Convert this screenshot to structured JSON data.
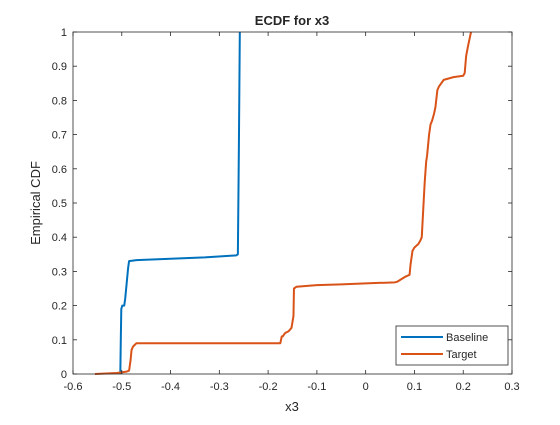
{
  "chart_data": {
    "type": "line",
    "title": "ECDF for x3",
    "xlabel": "x3",
    "ylabel": "Empirical CDF",
    "xlim": [
      -0.6,
      0.3
    ],
    "ylim": [
      0,
      1
    ],
    "xticks": [
      -0.6,
      -0.5,
      -0.4,
      -0.3,
      -0.2,
      -0.1,
      0,
      0.1,
      0.2,
      0.3
    ],
    "xtick_labels": [
      "-0.6",
      "-0.5",
      "-0.4",
      "-0.3",
      "-0.2",
      "-0.1",
      "0",
      "0.1",
      "0.2",
      "0.3"
    ],
    "yticks": [
      0,
      0.1,
      0.2,
      0.3,
      0.4,
      0.5,
      0.6,
      0.7,
      0.8,
      0.9,
      1
    ],
    "ytick_labels": [
      "0",
      "0.1",
      "0.2",
      "0.3",
      "0.4",
      "0.5",
      "0.6",
      "0.7",
      "0.8",
      "0.9",
      "1"
    ],
    "grid": false,
    "legend_position": "bottom-right",
    "series": [
      {
        "name": "Baseline",
        "color": "#0072bd",
        "points": [
          [
            -0.503,
            0
          ],
          [
            -0.502,
            0.1
          ],
          [
            -0.501,
            0.19
          ],
          [
            -0.499,
            0.2
          ],
          [
            -0.495,
            0.2
          ],
          [
            -0.493,
            0.22
          ],
          [
            -0.491,
            0.25
          ],
          [
            -0.489,
            0.28
          ],
          [
            -0.487,
            0.31
          ],
          [
            -0.485,
            0.33
          ],
          [
            -0.47,
            0.333
          ],
          [
            -0.4,
            0.337
          ],
          [
            -0.33,
            0.341
          ],
          [
            -0.265,
            0.347
          ],
          [
            -0.262,
            0.35
          ],
          [
            -0.26,
            0.65
          ],
          [
            -0.258,
            1.0
          ]
        ]
      },
      {
        "name": "Target",
        "color": "#d95319",
        "points": [
          [
            -0.555,
            0
          ],
          [
            -0.51,
            0.003
          ],
          [
            -0.49,
            0.007
          ],
          [
            -0.485,
            0.01
          ],
          [
            -0.482,
            0.04
          ],
          [
            -0.48,
            0.07
          ],
          [
            -0.477,
            0.08
          ],
          [
            -0.47,
            0.09
          ],
          [
            -0.4,
            0.09
          ],
          [
            -0.25,
            0.09
          ],
          [
            -0.175,
            0.09
          ],
          [
            -0.172,
            0.11
          ],
          [
            -0.17,
            0.11
          ],
          [
            -0.165,
            0.12
          ],
          [
            -0.158,
            0.125
          ],
          [
            -0.152,
            0.135
          ],
          [
            -0.148,
            0.17
          ],
          [
            -0.147,
            0.25
          ],
          [
            -0.142,
            0.255
          ],
          [
            -0.1,
            0.26
          ],
          [
            -0.05,
            0.262
          ],
          [
            0.0,
            0.265
          ],
          [
            0.04,
            0.267
          ],
          [
            0.06,
            0.268
          ],
          [
            0.065,
            0.27
          ],
          [
            0.082,
            0.285
          ],
          [
            0.09,
            0.29
          ],
          [
            0.092,
            0.32
          ],
          [
            0.096,
            0.36
          ],
          [
            0.1,
            0.37
          ],
          [
            0.108,
            0.38
          ],
          [
            0.112,
            0.39
          ],
          [
            0.115,
            0.4
          ],
          [
            0.118,
            0.48
          ],
          [
            0.121,
            0.56
          ],
          [
            0.124,
            0.62
          ],
          [
            0.126,
            0.64
          ],
          [
            0.13,
            0.7
          ],
          [
            0.133,
            0.73
          ],
          [
            0.136,
            0.74
          ],
          [
            0.14,
            0.76
          ],
          [
            0.143,
            0.78
          ],
          [
            0.147,
            0.83
          ],
          [
            0.15,
            0.84
          ],
          [
            0.16,
            0.86
          ],
          [
            0.18,
            0.868
          ],
          [
            0.2,
            0.872
          ],
          [
            0.203,
            0.88
          ],
          [
            0.206,
            0.93
          ],
          [
            0.21,
            0.96
          ],
          [
            0.213,
            0.98
          ],
          [
            0.216,
            1.0
          ]
        ]
      }
    ]
  }
}
